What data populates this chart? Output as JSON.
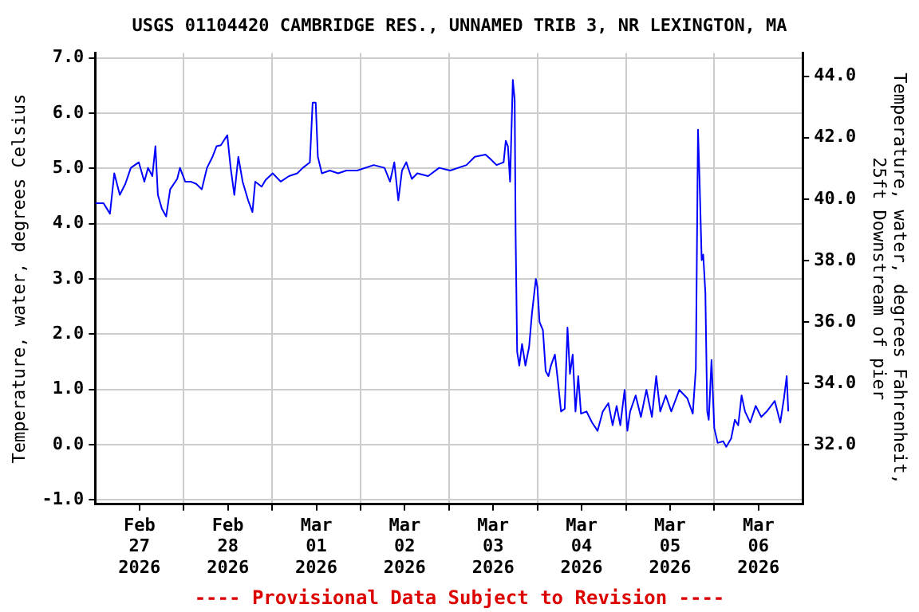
{
  "chart_data": {
    "type": "line",
    "title": "USGS 01104420 CAMBRIDGE RES., UNNAMED TRIB 3, NR LEXINGTON, MA",
    "ylabel": "Temperature, water, degrees Celsius",
    "y2label": "Temperature, water, degrees Fahrenheit, 25ft Downstream of pier",
    "annotations": [
      "---- Provisional Data Subject to Revision ----"
    ],
    "xlim": [
      "2026-02-27T00:00",
      "2026-03-07T00:00"
    ],
    "xticks": [
      {
        "value": "2026-02-27T12:00",
        "label": "Feb 27 2026"
      },
      {
        "value": "2026-02-28T00:00",
        "label": null
      },
      {
        "value": "2026-02-28T12:00",
        "label": "Feb 28 2026"
      },
      {
        "value": "2026-03-01T00:00",
        "label": null
      },
      {
        "value": "2026-03-01T12:00",
        "label": "Mar 01 2026"
      },
      {
        "value": "2026-03-02T00:00",
        "label": null
      },
      {
        "value": "2026-03-02T12:00",
        "label": "Mar 02 2026"
      },
      {
        "value": "2026-03-03T00:00",
        "label": null
      },
      {
        "value": "2026-03-03T12:00",
        "label": "Mar 03 2026"
      },
      {
        "value": "2026-03-04T00:00",
        "label": null
      },
      {
        "value": "2026-03-04T12:00",
        "label": "Mar 04 2026"
      },
      {
        "value": "2026-03-05T00:00",
        "label": null
      },
      {
        "value": "2026-03-05T12:00",
        "label": "Mar 05 2026"
      },
      {
        "value": "2026-03-06T00:00",
        "label": null
      },
      {
        "value": "2026-03-06T12:00",
        "label": "Mar 06 2026"
      }
    ],
    "ylim": [
      -1.08,
      7.09
    ],
    "yticks": [
      {
        "value": -1,
        "label": "-1.0"
      },
      {
        "value": 0,
        "label": "0.0"
      },
      {
        "value": 1,
        "label": "1.0"
      },
      {
        "value": 2,
        "label": "2.0"
      },
      {
        "value": 3,
        "label": "3.0"
      },
      {
        "value": 4,
        "label": "4.0"
      },
      {
        "value": 5,
        "label": "5.0"
      },
      {
        "value": 6,
        "label": "6.0"
      },
      {
        "value": 7,
        "label": "7.0"
      }
    ],
    "y2lim": [
      30.06,
      44.76
    ],
    "y2ticks": [
      {
        "value": 32,
        "label": "32.0"
      },
      {
        "value": 34,
        "label": "34.0"
      },
      {
        "value": 36,
        "label": "36.0"
      },
      {
        "value": 38,
        "label": "38.0"
      },
      {
        "value": 40,
        "label": "40.0"
      },
      {
        "value": 42,
        "label": "42.0"
      },
      {
        "value": 44,
        "label": "44.0"
      }
    ],
    "grid": true,
    "legend": false,
    "marker": "none",
    "line_style": "solid",
    "x": [
      "2026-02-27T00:00",
      "2026-02-27T02:15",
      "2026-02-27T04:00",
      "2026-02-27T05:10",
      "2026-02-27T06:40",
      "2026-02-27T08:10",
      "2026-02-27T09:40",
      "2026-02-27T11:50",
      "2026-02-27T13:20",
      "2026-02-27T14:20",
      "2026-02-27T15:30",
      "2026-02-27T16:20",
      "2026-02-27T17:00",
      "2026-02-27T18:05",
      "2026-02-27T19:15",
      "2026-02-27T20:20",
      "2026-02-27T22:15",
      "2026-02-27T23:00",
      "2026-02-28T00:25",
      "2026-02-28T01:55",
      "2026-02-28T03:25",
      "2026-02-28T04:55",
      "2026-02-28T06:20",
      "2026-02-28T07:50",
      "2026-02-28T08:55",
      "2026-02-28T10:05",
      "2026-02-28T11:50",
      "2026-02-28T12:45",
      "2026-02-28T13:45",
      "2026-02-28T14:50",
      "2026-02-28T16:00",
      "2026-02-28T17:30",
      "2026-02-28T18:40",
      "2026-02-28T19:25",
      "2026-02-28T21:10",
      "2026-02-28T22:15",
      "2026-03-01T00:10",
      "2026-03-01T02:20",
      "2026-03-01T04:35",
      "2026-03-01T06:50",
      "2026-03-01T08:20",
      "2026-03-01T10:15",
      "2026-03-01T11:00",
      "2026-03-01T11:50",
      "2026-03-01T12:25",
      "2026-03-01T13:30",
      "2026-03-01T15:40",
      "2026-03-01T17:55",
      "2026-03-01T20:10",
      "2026-03-01T23:05",
      "2026-03-02T03:35",
      "2026-03-02T06:30",
      "2026-03-02T08:00",
      "2026-03-02T09:10",
      "2026-03-02T10:15",
      "2026-03-02T11:15",
      "2026-03-02T12:25",
      "2026-03-02T13:55",
      "2026-03-02T15:25",
      "2026-03-02T18:20",
      "2026-03-02T21:20",
      "2026-03-03T00:20",
      "2026-03-03T04:45",
      "2026-03-03T07:00",
      "2026-03-03T09:55",
      "2026-03-03T11:25",
      "2026-03-03T12:55",
      "2026-03-03T14:50",
      "2026-03-03T15:25",
      "2026-03-03T16:00",
      "2026-03-03T16:35",
      "2026-03-03T17:20",
      "2026-03-03T17:50",
      "2026-03-03T18:05",
      "2026-03-03T18:30",
      "2026-03-03T19:05",
      "2026-03-03T19:50",
      "2026-03-03T20:45",
      "2026-03-03T21:45",
      "2026-03-03T22:30",
      "2026-03-03T23:35",
      "2026-03-04T00:00",
      "2026-03-04T00:35",
      "2026-03-04T01:30",
      "2026-03-04T02:15",
      "2026-03-04T03:00",
      "2026-03-04T03:40",
      "2026-03-04T04:45",
      "2026-03-04T05:30",
      "2026-03-04T06:25",
      "2026-03-04T07:25",
      "2026-03-04T08:10",
      "2026-03-04T08:50",
      "2026-03-04T09:35",
      "2026-03-04T10:20",
      "2026-03-04T11:05",
      "2026-03-04T11:50",
      "2026-03-04T13:20",
      "2026-03-04T14:50",
      "2026-03-04T16:20",
      "2026-03-04T17:45",
      "2026-03-04T19:15",
      "2026-03-04T20:25",
      "2026-03-04T21:30",
      "2026-03-04T22:30",
      "2026-03-04T23:40",
      "2026-03-05T00:25",
      "2026-03-05T01:10",
      "2026-03-05T02:40",
      "2026-03-05T04:05",
      "2026-03-05T05:35",
      "2026-03-05T07:05",
      "2026-03-05T08:15",
      "2026-03-05T09:20",
      "2026-03-05T10:50",
      "2026-03-05T12:20",
      "2026-03-05T14:30",
      "2026-03-05T16:40",
      "2026-03-05T18:10",
      "2026-03-05T19:00",
      "2026-03-05T19:35",
      "2026-03-05T20:00",
      "2026-03-05T20:35",
      "2026-03-05T21:00",
      "2026-03-05T21:35",
      "2026-03-05T22:05",
      "2026-03-05T22:30",
      "2026-03-05T23:15",
      "2026-03-06T00:00",
      "2026-03-06T00:55",
      "2026-03-06T02:25",
      "2026-03-06T03:15",
      "2026-03-06T04:35",
      "2026-03-06T05:35",
      "2026-03-06T06:30",
      "2026-03-06T07:25",
      "2026-03-06T08:20",
      "2026-03-06T09:45",
      "2026-03-06T11:15",
      "2026-03-06T12:45",
      "2026-03-06T14:15",
      "2026-03-06T16:25",
      "2026-03-06T17:55",
      "2026-03-06T18:55",
      "2026-03-06T19:40",
      "2026-03-06T20:05"
    ],
    "series": [
      {
        "color": "#0000ff",
        "values": [
          4.37,
          4.37,
          4.18,
          4.91,
          4.52,
          4.72,
          5.01,
          5.11,
          4.76,
          5.01,
          4.86,
          5.4,
          4.52,
          4.27,
          4.13,
          4.62,
          4.81,
          5.01,
          4.76,
          4.76,
          4.72,
          4.62,
          5.01,
          5.21,
          5.4,
          5.42,
          5.6,
          5.01,
          4.52,
          5.21,
          4.76,
          4.42,
          4.21,
          4.76,
          4.67,
          4.79,
          4.91,
          4.76,
          4.86,
          4.91,
          5.01,
          5.11,
          6.19,
          6.19,
          5.21,
          4.91,
          4.96,
          4.91,
          4.96,
          4.96,
          5.06,
          5.01,
          4.76,
          5.11,
          4.42,
          4.96,
          5.11,
          4.81,
          4.91,
          4.86,
          5.01,
          4.96,
          5.06,
          5.21,
          5.25,
          5.16,
          5.06,
          5.11,
          5.5,
          5.4,
          4.76,
          6.6,
          6.24,
          3.83,
          1.68,
          1.43,
          1.82,
          1.43,
          1.77,
          2.36,
          3.0,
          2.85,
          2.22,
          2.07,
          1.33,
          1.24,
          1.43,
          1.63,
          1.19,
          0.6,
          0.65,
          2.12,
          1.28,
          1.63,
          0.6,
          1.24,
          0.56,
          0.6,
          0.4,
          0.25,
          0.6,
          0.75,
          0.35,
          0.7,
          0.35,
          0.99,
          0.25,
          0.6,
          0.89,
          0.5,
          0.99,
          0.5,
          1.24,
          0.6,
          0.89,
          0.6,
          0.99,
          0.84,
          0.56,
          1.38,
          5.7,
          4.81,
          3.34,
          3.44,
          2.75,
          0.6,
          0.45,
          1.53,
          0.3,
          0.03,
          0.06,
          -0.04,
          0.11,
          0.45,
          0.35,
          0.89,
          0.6,
          0.4,
          0.7,
          0.5,
          0.6,
          0.79,
          0.4,
          0.84,
          1.24,
          0.6
        ]
      }
    ]
  }
}
